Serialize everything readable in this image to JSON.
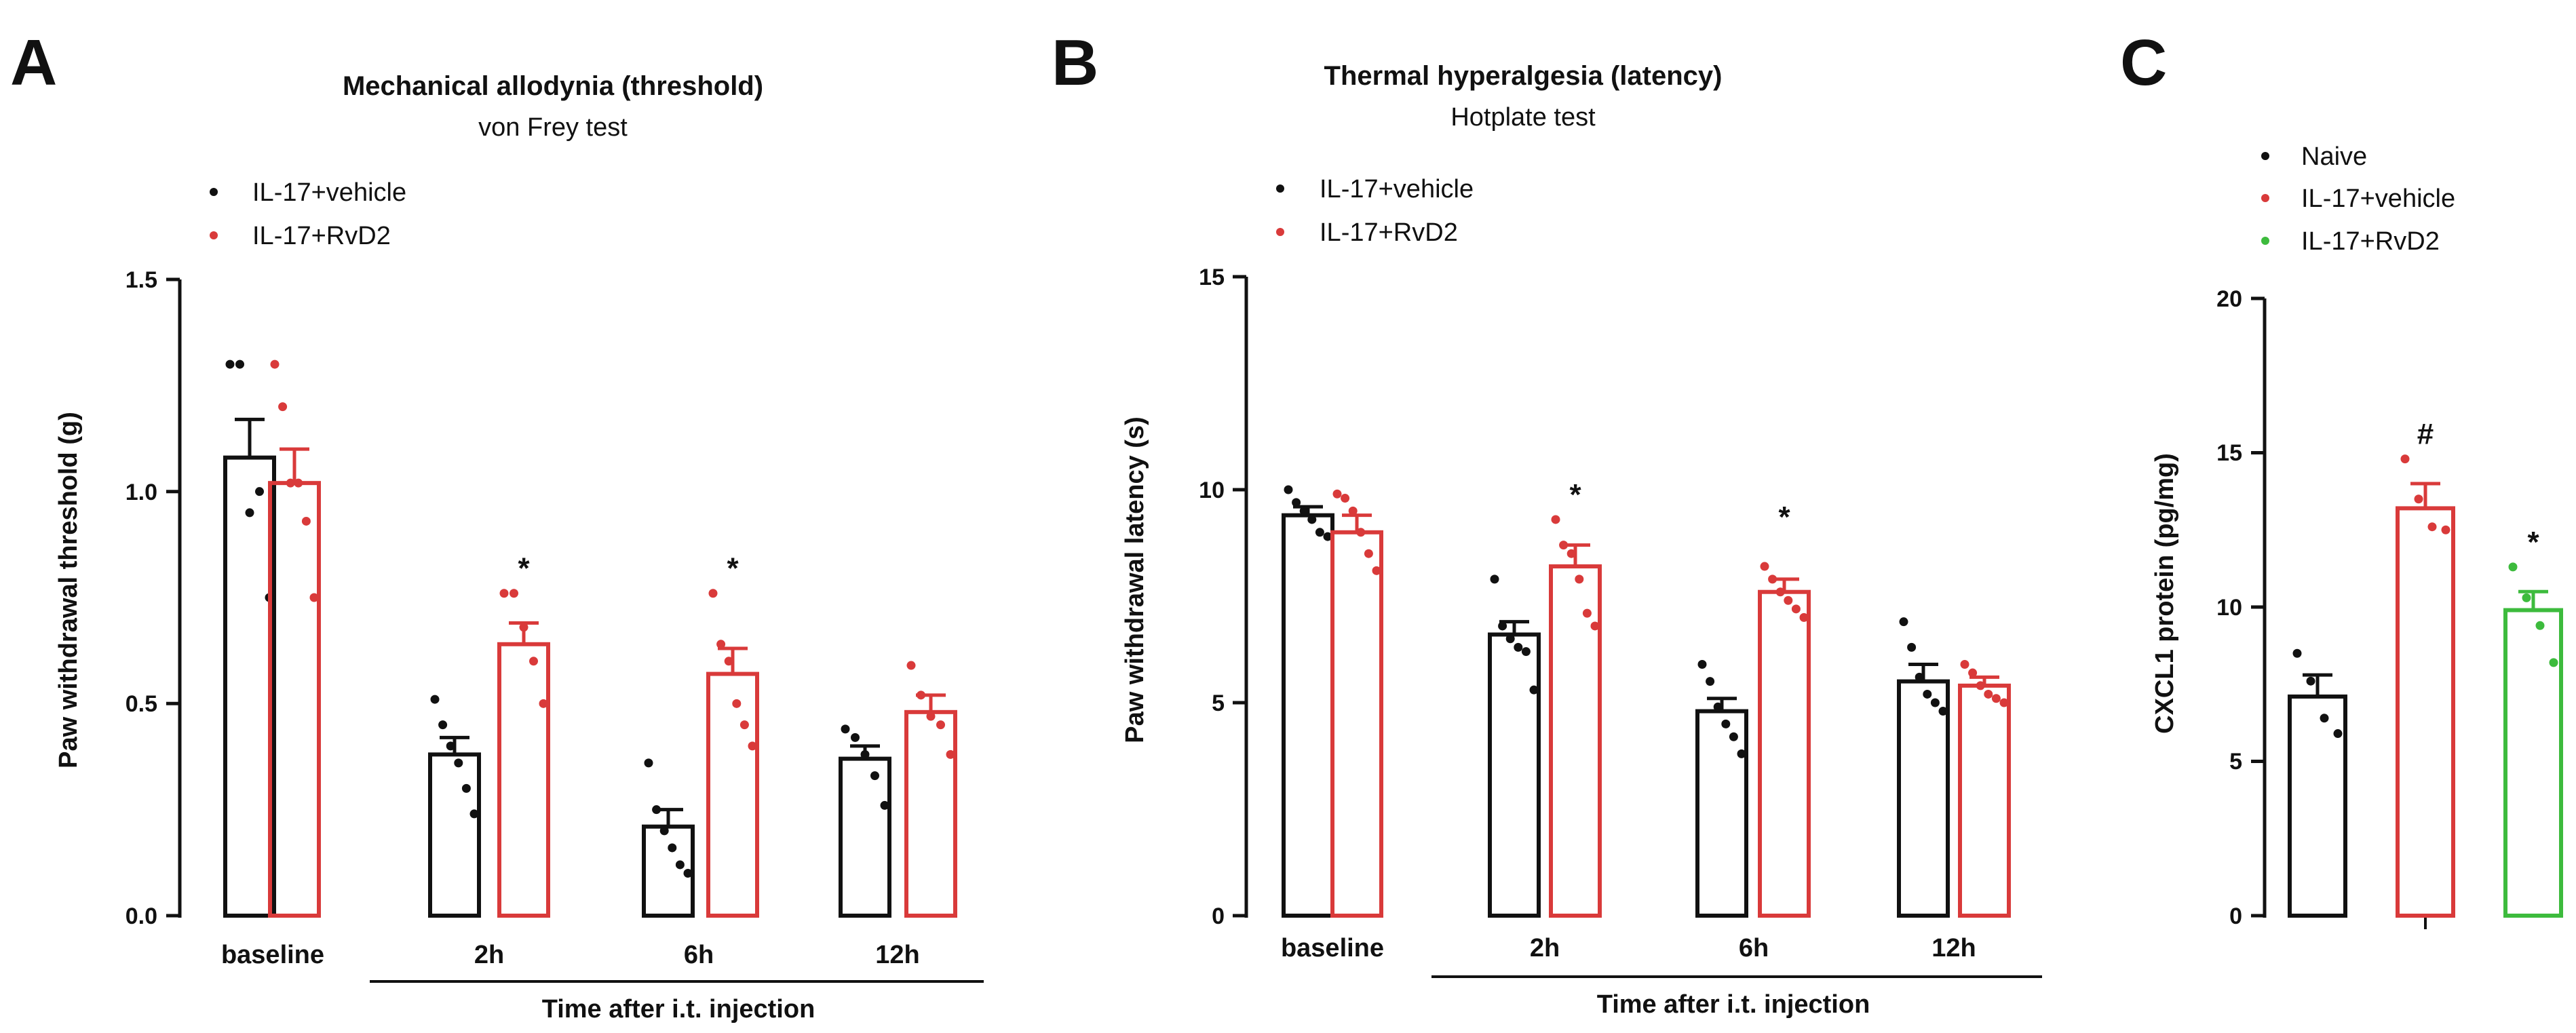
{
  "colors": {
    "black": "#111111",
    "red": "#d93a3a",
    "green": "#3dbb3d"
  },
  "chart_data": [
    {
      "type": "bar",
      "panel": "A",
      "title": "Mechanical allodynia (threshold)",
      "subtitle": "von Frey test",
      "ylabel": "Paw withdrawal threshold (g)",
      "xlabel": "Time after i.t. injection",
      "ylim": [
        0,
        1.5
      ],
      "yticks": [
        "0.0",
        "0.5",
        "1.0",
        "1.5"
      ],
      "categories": [
        "baseline",
        "2h",
        "6h",
        "12h"
      ],
      "series": [
        {
          "name": "IL-17+vehicle",
          "color": "#111111",
          "values": [
            1.08,
            0.38,
            0.21,
            0.37
          ],
          "sem": [
            0.09,
            0.04,
            0.04,
            0.03
          ],
          "markers": [
            "",
            "",
            "",
            ""
          ],
          "points": [
            [
              1.3,
              1.3,
              0.95,
              1.0,
              0.75
            ],
            [
              0.51,
              0.45,
              0.4,
              0.36,
              0.3,
              0.24
            ],
            [
              0.36,
              0.25,
              0.2,
              0.16,
              0.12,
              0.1
            ],
            [
              0.44,
              0.42,
              0.38,
              0.33,
              0.26
            ]
          ]
        },
        {
          "name": "IL-17+RvD2",
          "color": "#d93a3a",
          "values": [
            1.02,
            0.64,
            0.57,
            0.48
          ],
          "sem": [
            0.08,
            0.05,
            0.06,
            0.04
          ],
          "markers": [
            "",
            "*",
            "*",
            ""
          ],
          "points": [
            [
              1.3,
              1.2,
              1.02,
              1.02,
              0.93,
              0.75
            ],
            [
              0.76,
              0.76,
              0.68,
              0.6,
              0.5
            ],
            [
              0.76,
              0.64,
              0.6,
              0.5,
              0.45,
              0.4
            ],
            [
              0.59,
              0.52,
              0.47,
              0.45,
              0.38
            ]
          ]
        }
      ]
    },
    {
      "type": "bar",
      "panel": "B",
      "title": "Thermal hyperalgesia (latency)",
      "subtitle": "Hotplate test",
      "ylabel": "Paw withdrawal latency (s)",
      "xlabel": "Time after i.t. injection",
      "ylim": [
        0,
        15
      ],
      "yticks": [
        "0",
        "5",
        "10",
        "15"
      ],
      "categories": [
        "baseline",
        "2h",
        "6h",
        "12h"
      ],
      "series": [
        {
          "name": "IL-17+vehicle",
          "color": "#111111",
          "values": [
            9.4,
            6.6,
            4.8,
            5.5
          ],
          "sem": [
            0.2,
            0.3,
            0.3,
            0.4
          ],
          "markers": [
            "",
            "",
            "",
            ""
          ],
          "points": [
            [
              10.0,
              9.7,
              9.5,
              9.3,
              9.0,
              8.9
            ],
            [
              7.9,
              6.8,
              6.5,
              6.3,
              6.2,
              5.3
            ],
            [
              5.9,
              5.5,
              4.9,
              4.5,
              4.2,
              3.8
            ],
            [
              6.9,
              6.3,
              5.6,
              5.2,
              5.0,
              4.8
            ]
          ]
        },
        {
          "name": "IL-17+RvD2",
          "color": "#d93a3a",
          "values": [
            9.0,
            8.2,
            7.6,
            5.4
          ],
          "sem": [
            0.4,
            0.5,
            0.3,
            0.2
          ],
          "markers": [
            "",
            "*",
            "",
            ""
          ],
          "points": [
            [
              9.9,
              9.8,
              9.5,
              9.0,
              8.5,
              8.1
            ],
            [
              9.3,
              8.7,
              8.5,
              7.9,
              7.1,
              6.8
            ],
            [
              8.2,
              7.9,
              7.6,
              7.4,
              7.2,
              7.0
            ],
            [
              5.9,
              5.7,
              5.4,
              5.2,
              5.1,
              5.0
            ]
          ]
        }
      ],
      "annotations": [
        {
          "text": "*",
          "category": "6h",
          "series": "IL-17+RvD2",
          "value": 8.9
        }
      ]
    },
    {
      "type": "bar",
      "panel": "C",
      "ylabel": "CXCL1 protein (pg/mg)",
      "ylim": [
        0,
        20
      ],
      "yticks": [
        "0",
        "5",
        "10",
        "15",
        "20"
      ],
      "categories": [
        "Naive",
        "IL-17+vehicle",
        "IL-17+RvD2"
      ],
      "values": [
        7.1,
        13.2,
        9.9
      ],
      "sem": [
        0.7,
        0.8,
        0.6
      ],
      "colors": [
        "#111111",
        "#d93a3a",
        "#3dbb3d"
      ],
      "markers": [
        "",
        "#",
        "*"
      ],
      "points": [
        [
          8.5,
          7.6,
          6.4,
          5.9
        ],
        [
          14.8,
          13.5,
          12.6,
          12.5
        ],
        [
          11.3,
          10.3,
          9.4,
          8.2
        ]
      ],
      "legend": [
        "Naive",
        "IL-17+vehicle",
        "IL-17+RvD2"
      ]
    }
  ]
}
